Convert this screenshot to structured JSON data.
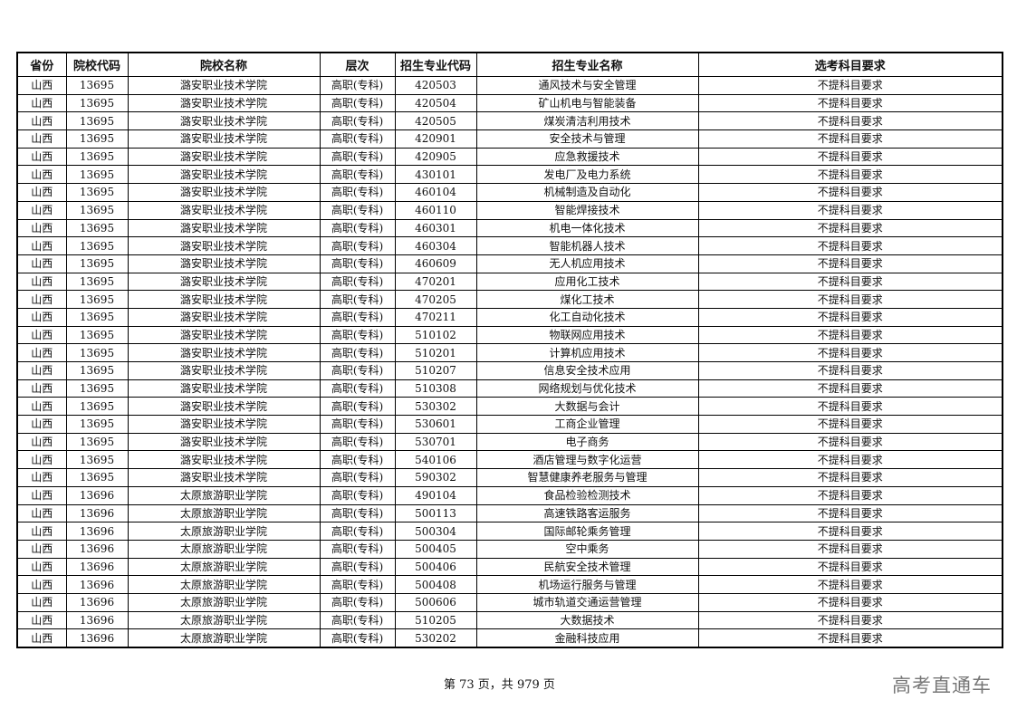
{
  "table": {
    "headers": [
      "省份",
      "院校代码",
      "院校名称",
      "层次",
      "招生专业代码",
      "招生专业名称",
      "选考科目要求"
    ],
    "rows": [
      [
        "山西",
        "13695",
        "潞安职业技术学院",
        "高职(专科)",
        "420503",
        "通风技术与安全管理",
        "不提科目要求"
      ],
      [
        "山西",
        "13695",
        "潞安职业技术学院",
        "高职(专科)",
        "420504",
        "矿山机电与智能装备",
        "不提科目要求"
      ],
      [
        "山西",
        "13695",
        "潞安职业技术学院",
        "高职(专科)",
        "420505",
        "煤炭清洁利用技术",
        "不提科目要求"
      ],
      [
        "山西",
        "13695",
        "潞安职业技术学院",
        "高职(专科)",
        "420901",
        "安全技术与管理",
        "不提科目要求"
      ],
      [
        "山西",
        "13695",
        "潞安职业技术学院",
        "高职(专科)",
        "420905",
        "应急救援技术",
        "不提科目要求"
      ],
      [
        "山西",
        "13695",
        "潞安职业技术学院",
        "高职(专科)",
        "430101",
        "发电厂及电力系统",
        "不提科目要求"
      ],
      [
        "山西",
        "13695",
        "潞安职业技术学院",
        "高职(专科)",
        "460104",
        "机械制造及自动化",
        "不提科目要求"
      ],
      [
        "山西",
        "13695",
        "潞安职业技术学院",
        "高职(专科)",
        "460110",
        "智能焊接技术",
        "不提科目要求"
      ],
      [
        "山西",
        "13695",
        "潞安职业技术学院",
        "高职(专科)",
        "460301",
        "机电一体化技术",
        "不提科目要求"
      ],
      [
        "山西",
        "13695",
        "潞安职业技术学院",
        "高职(专科)",
        "460304",
        "智能机器人技术",
        "不提科目要求"
      ],
      [
        "山西",
        "13695",
        "潞安职业技术学院",
        "高职(专科)",
        "460609",
        "无人机应用技术",
        "不提科目要求"
      ],
      [
        "山西",
        "13695",
        "潞安职业技术学院",
        "高职(专科)",
        "470201",
        "应用化工技术",
        "不提科目要求"
      ],
      [
        "山西",
        "13695",
        "潞安职业技术学院",
        "高职(专科)",
        "470205",
        "煤化工技术",
        "不提科目要求"
      ],
      [
        "山西",
        "13695",
        "潞安职业技术学院",
        "高职(专科)",
        "470211",
        "化工自动化技术",
        "不提科目要求"
      ],
      [
        "山西",
        "13695",
        "潞安职业技术学院",
        "高职(专科)",
        "510102",
        "物联网应用技术",
        "不提科目要求"
      ],
      [
        "山西",
        "13695",
        "潞安职业技术学院",
        "高职(专科)",
        "510201",
        "计算机应用技术",
        "不提科目要求"
      ],
      [
        "山西",
        "13695",
        "潞安职业技术学院",
        "高职(专科)",
        "510207",
        "信息安全技术应用",
        "不提科目要求"
      ],
      [
        "山西",
        "13695",
        "潞安职业技术学院",
        "高职(专科)",
        "510308",
        "网络规划与优化技术",
        "不提科目要求"
      ],
      [
        "山西",
        "13695",
        "潞安职业技术学院",
        "高职(专科)",
        "530302",
        "大数据与会计",
        "不提科目要求"
      ],
      [
        "山西",
        "13695",
        "潞安职业技术学院",
        "高职(专科)",
        "530601",
        "工商企业管理",
        "不提科目要求"
      ],
      [
        "山西",
        "13695",
        "潞安职业技术学院",
        "高职(专科)",
        "530701",
        "电子商务",
        "不提科目要求"
      ],
      [
        "山西",
        "13695",
        "潞安职业技术学院",
        "高职(专科)",
        "540106",
        "酒店管理与数字化运营",
        "不提科目要求"
      ],
      [
        "山西",
        "13695",
        "潞安职业技术学院",
        "高职(专科)",
        "590302",
        "智慧健康养老服务与管理",
        "不提科目要求"
      ],
      [
        "山西",
        "13696",
        "太原旅游职业学院",
        "高职(专科)",
        "490104",
        "食品检验检测技术",
        "不提科目要求"
      ],
      [
        "山西",
        "13696",
        "太原旅游职业学院",
        "高职(专科)",
        "500113",
        "高速铁路客运服务",
        "不提科目要求"
      ],
      [
        "山西",
        "13696",
        "太原旅游职业学院",
        "高职(专科)",
        "500304",
        "国际邮轮乘务管理",
        "不提科目要求"
      ],
      [
        "山西",
        "13696",
        "太原旅游职业学院",
        "高职(专科)",
        "500405",
        "空中乘务",
        "不提科目要求"
      ],
      [
        "山西",
        "13696",
        "太原旅游职业学院",
        "高职(专科)",
        "500406",
        "民航安全技术管理",
        "不提科目要求"
      ],
      [
        "山西",
        "13696",
        "太原旅游职业学院",
        "高职(专科)",
        "500408",
        "机场运行服务与管理",
        "不提科目要求"
      ],
      [
        "山西",
        "13696",
        "太原旅游职业学院",
        "高职(专科)",
        "500606",
        "城市轨道交通运营管理",
        "不提科目要求"
      ],
      [
        "山西",
        "13696",
        "太原旅游职业学院",
        "高职(专科)",
        "510205",
        "大数据技术",
        "不提科目要求"
      ],
      [
        "山西",
        "13696",
        "太原旅游职业学院",
        "高职(专科)",
        "530202",
        "金融科技应用",
        "不提科目要求"
      ]
    ]
  },
  "footer": {
    "page_info": "第 73 页，共 979 页"
  },
  "watermark": "高考直通车"
}
